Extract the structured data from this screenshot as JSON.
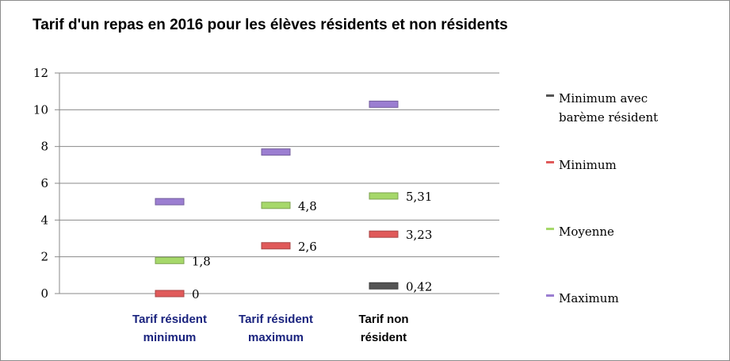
{
  "chart_data": {
    "type": "stock-markers",
    "title": "Tarif d'un repas en 2016 pour les élèves résidents et non résidents",
    "xlabel": "",
    "ylabel": "",
    "ylim": [
      0,
      12
    ],
    "yticks": [
      0,
      2,
      4,
      6,
      8,
      10,
      12
    ],
    "grid": true,
    "legend_position": "right",
    "categories": [
      {
        "lines": [
          "Tarif résident",
          "minimum"
        ],
        "color": "#1a237e"
      },
      {
        "lines": [
          "Tarif résident",
          "maximum"
        ],
        "color": "#1a237e"
      },
      {
        "lines": [
          "Tarif non",
          "résident"
        ],
        "color": "#000000"
      }
    ],
    "series": [
      {
        "name": "Minimum avec barème résident",
        "legend_lines": [
          "Minimum avec",
          "barème résident"
        ],
        "color": "#555555",
        "values": [
          null,
          null,
          0.42
        ],
        "labels": [
          "",
          "",
          "0,42"
        ]
      },
      {
        "name": "Minimum",
        "legend_lines": [
          "Minimum"
        ],
        "color": "#e05a5a",
        "values": [
          0,
          2.6,
          3.23
        ],
        "labels": [
          "0",
          "2,6",
          "3,23"
        ]
      },
      {
        "name": "Moyenne",
        "legend_lines": [
          "Moyenne"
        ],
        "color": "#a6d86a",
        "values": [
          1.8,
          4.8,
          5.31
        ],
        "labels": [
          "1,8",
          "4,8",
          "5,31"
        ]
      },
      {
        "name": "Maximum",
        "legend_lines": [
          "Maximum"
        ],
        "color": "#9b7ed1",
        "values": [
          5,
          7.7,
          10.3
        ],
        "labels": [
          "",
          "",
          ""
        ]
      }
    ]
  }
}
